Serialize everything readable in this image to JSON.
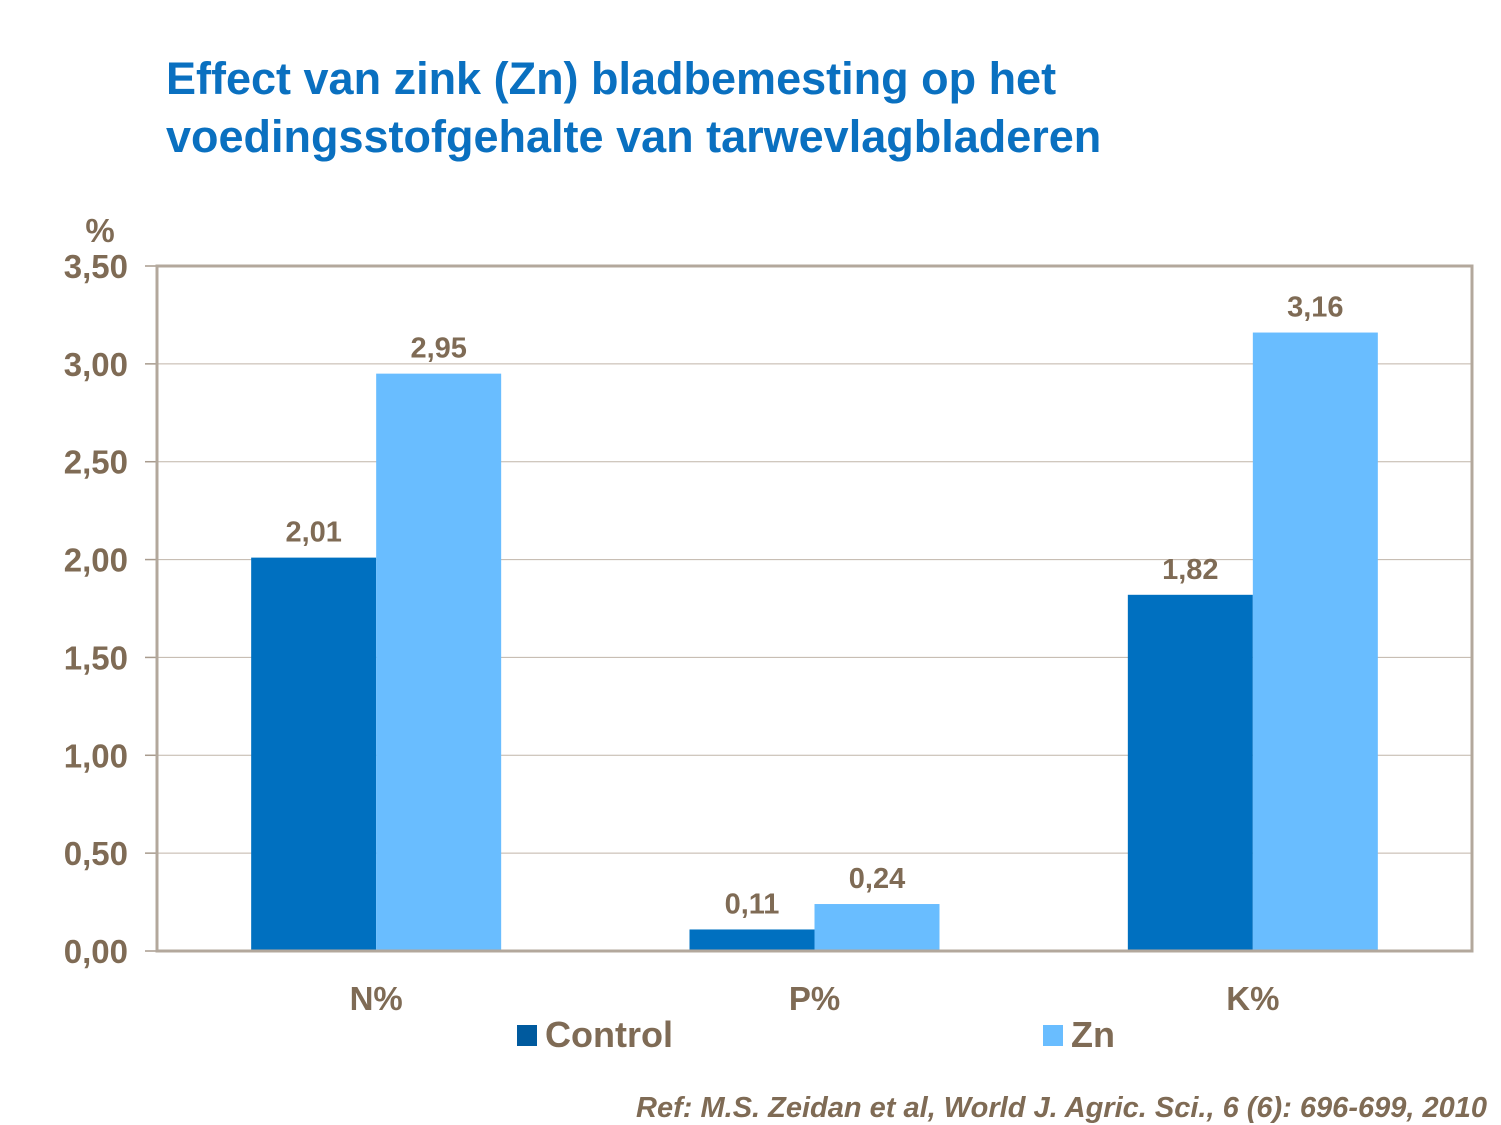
{
  "chart_data": {
    "type": "bar",
    "title": "Effect van zink (Zn) bladbemesting op het voedingsstofgehalte van tarwevlagbladeren",
    "title_lines": [
      "Effect van zink (Zn) bladbemesting op het",
      "voedingsstofgehalte van tarwevlagbladeren"
    ],
    "ylabel": "%",
    "xlabel": "",
    "categories": [
      "N%",
      "P%",
      "K%"
    ],
    "series": [
      {
        "name": "Control",
        "values": [
          2.01,
          0.11,
          1.82
        ],
        "labels": [
          "2,01",
          "0,11",
          "1,82"
        ],
        "color": "#0070c0"
      },
      {
        "name": "Zn",
        "values": [
          2.95,
          0.24,
          3.16
        ],
        "labels": [
          "2,95",
          "0,24",
          "3,16"
        ],
        "color": "#69bdff"
      }
    ],
    "ylim": [
      0,
      3.5
    ],
    "yticks": [
      0,
      0.5,
      1,
      1.5,
      2,
      2.5,
      3,
      3.5
    ],
    "ytick_labels": [
      "0,00",
      "0,50",
      "1,00",
      "1,50",
      "2,00",
      "2,50",
      "3,00",
      "3,50"
    ],
    "grid": true,
    "legend": "bottom",
    "footnote": "Ref: M.S. Zeidan et al, World J. Agric. Sci., 6 (6): 696-699, 2010"
  }
}
